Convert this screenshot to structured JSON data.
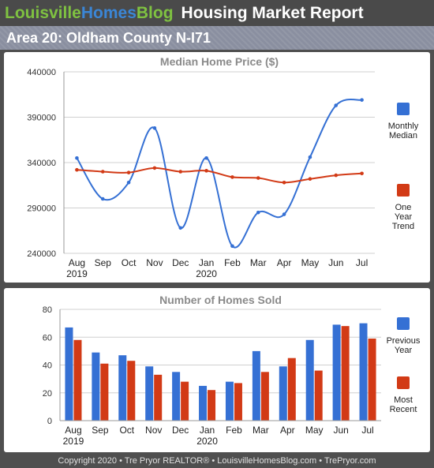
{
  "header": {
    "brand_part1": "Louisville",
    "brand_part2": "Homes",
    "brand_part3": "Blog",
    "title": "Housing Market Report"
  },
  "subheader": {
    "area": "Area 20: Oldham County N-I71"
  },
  "footer": {
    "text": "Copyright 2020 • Tre Pryor REALTOR® • LouisvilleHomesBlog.com • TrePryor.com"
  },
  "colors": {
    "blue": "#3570d4",
    "red": "#d23a16",
    "grid": "#d0d0d0"
  },
  "chart_data": [
    {
      "type": "line",
      "title": "Median Home Price ($)",
      "categories": [
        "Aug",
        "Sep",
        "Oct",
        "Nov",
        "Dec",
        "Jan",
        "Feb",
        "Mar",
        "Apr",
        "May",
        "Jun",
        "Jul"
      ],
      "year_labels": [
        "2019",
        "",
        "",
        "",
        "",
        "2020",
        "",
        "",
        "",
        "",
        "",
        ""
      ],
      "yticks": [
        "240000",
        "290000",
        "340000",
        "390000",
        "440000"
      ],
      "ylim": [
        240000,
        440000
      ],
      "legend_position": "right",
      "series": [
        {
          "name": "Monthly Median",
          "legend_lines": [
            "Monthly",
            "Median"
          ],
          "color": "#3570d4",
          "values": [
            345000,
            300000,
            318000,
            378000,
            268000,
            345000,
            248000,
            285000,
            283000,
            346000,
            403000,
            409000
          ]
        },
        {
          "name": "One Year Trend",
          "legend_lines": [
            "One",
            "Year",
            "Trend"
          ],
          "color": "#d23a16",
          "values": [
            332000,
            330000,
            329000,
            334000,
            330000,
            331000,
            324000,
            323000,
            318000,
            322000,
            326000,
            328000
          ]
        }
      ]
    },
    {
      "type": "bar",
      "title": "Number of Homes Sold",
      "categories": [
        "Aug",
        "Sep",
        "Oct",
        "Nov",
        "Dec",
        "Jan",
        "Feb",
        "Mar",
        "Apr",
        "May",
        "Jun",
        "Jul"
      ],
      "year_labels": [
        "2019",
        "",
        "",
        "",
        "",
        "2020",
        "",
        "",
        "",
        "",
        "",
        ""
      ],
      "yticks": [
        "0",
        "20",
        "40",
        "60",
        "80"
      ],
      "ylim": [
        0,
        80
      ],
      "legend_position": "right",
      "series": [
        {
          "name": "Previous Year",
          "legend_lines": [
            "Previous",
            "Year"
          ],
          "color": "#3570d4",
          "values": [
            67,
            49,
            47,
            39,
            35,
            25,
            28,
            50,
            39,
            58,
            69,
            70
          ]
        },
        {
          "name": "Most Recent",
          "legend_lines": [
            "Most",
            "Recent"
          ],
          "color": "#d23a16",
          "values": [
            58,
            41,
            43,
            33,
            28,
            22,
            27,
            35,
            45,
            36,
            68,
            59
          ]
        }
      ]
    }
  ]
}
